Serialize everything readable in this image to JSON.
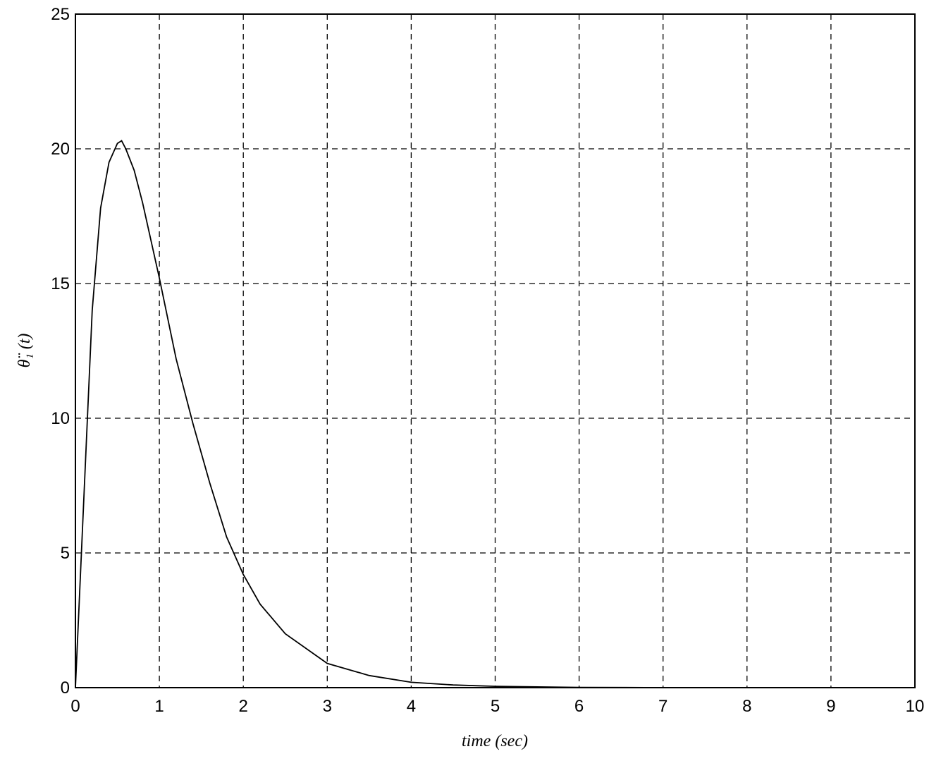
{
  "chart_data": {
    "type": "line",
    "xlabel": "time (sec)",
    "ylabel": "θ̈₁ (t)",
    "x": [
      0,
      0.1,
      0.2,
      0.3,
      0.4,
      0.5,
      0.55,
      0.6,
      0.7,
      0.8,
      1.0,
      1.2,
      1.4,
      1.6,
      1.8,
      2.0,
      2.2,
      2.5,
      3.0,
      3.5,
      4.0,
      4.5,
      5.0,
      6.0,
      7.0,
      8.0,
      9.0,
      10.0
    ],
    "series": [
      {
        "color": "#000000",
        "values": [
          0,
          7,
          14,
          17.8,
          19.5,
          20.2,
          20.3,
          20.0,
          19.2,
          18,
          15.2,
          12.2,
          9.8,
          7.6,
          5.6,
          4.2,
          3.1,
          2.0,
          0.9,
          0.45,
          0.2,
          0.1,
          0.05,
          0.01,
          0,
          0,
          0,
          0
        ]
      }
    ],
    "xlim": [
      0,
      10
    ],
    "xticks": [
      0,
      1,
      2,
      3,
      4,
      5,
      6,
      7,
      8,
      9,
      10
    ],
    "ylim": [
      0,
      25
    ],
    "yticks": [
      0,
      5,
      10,
      15,
      20,
      25
    ],
    "grid": true
  }
}
